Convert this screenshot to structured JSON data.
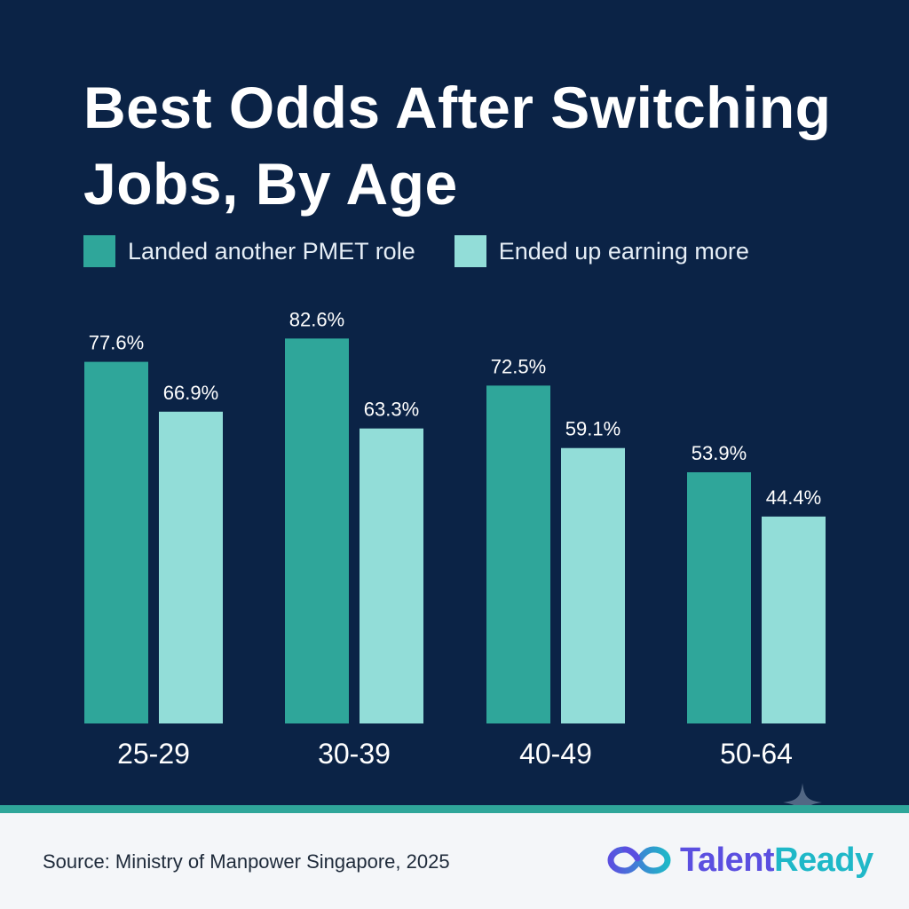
{
  "colors": {
    "background": "#0b2346",
    "series_primary": "#2fa69a",
    "series_secondary": "#92ddd8",
    "brand_primary": "#5b4fe0",
    "brand_secondary": "#1fb8c8"
  },
  "chart_data": {
    "type": "bar",
    "title": "Best Odds After Switching Jobs, By Age",
    "categories": [
      "25-29",
      "30-39",
      "40-49",
      "50-64"
    ],
    "series": [
      {
        "name": "Landed another PMET role",
        "values": [
          77.6,
          82.6,
          72.5,
          53.9
        ],
        "labels": [
          "77.6%",
          "82.6%",
          "72.5%",
          "53.9%"
        ]
      },
      {
        "name": "Ended up earning more",
        "values": [
          66.9,
          63.3,
          59.1,
          44.4
        ],
        "labels": [
          "66.9%",
          "63.3%",
          "59.1%",
          "44.4%"
        ]
      }
    ],
    "ylim": [
      0,
      100
    ],
    "grid": false,
    "legend": "top-left"
  },
  "footer": {
    "source": "Source: Ministry of Manpower Singapore, 2025",
    "brand_part1": "Talent",
    "brand_part2": "Ready",
    "brand_icon": "infinity-loop-icon",
    "decoration_icon": "sparkle-icon"
  }
}
